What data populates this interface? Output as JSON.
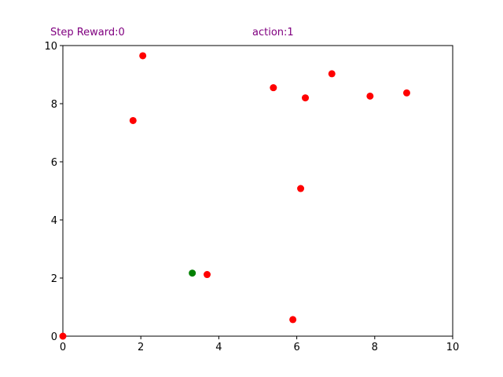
{
  "hud": {
    "step_reward": "Step Reward:0",
    "action": "action:1"
  },
  "colors": {
    "agent": "#008000",
    "target": "#ff0000",
    "hud_text": "#800080",
    "axes": "#000000"
  },
  "chart_data": {
    "type": "scatter",
    "xlim": [
      0,
      10
    ],
    "ylim": [
      0,
      10
    ],
    "x_ticks": [
      "0",
      "2",
      "4",
      "6",
      "8",
      "10"
    ],
    "y_ticks": [
      "0",
      "2",
      "4",
      "6",
      "8",
      "10"
    ],
    "grid": false,
    "series": [
      {
        "color": "#008000",
        "points": [
          [
            3.32,
            2.17
          ]
        ]
      },
      {
        "color": "#ff0000",
        "points": [
          [
            0.0,
            0.0
          ],
          [
            1.8,
            7.42
          ],
          [
            2.05,
            9.65
          ],
          [
            3.7,
            2.12
          ],
          [
            5.4,
            8.55
          ],
          [
            5.9,
            0.57
          ],
          [
            6.1,
            5.08
          ],
          [
            6.22,
            8.2
          ],
          [
            6.9,
            9.03
          ],
          [
            7.88,
            8.26
          ],
          [
            8.82,
            8.37
          ]
        ]
      }
    ]
  }
}
